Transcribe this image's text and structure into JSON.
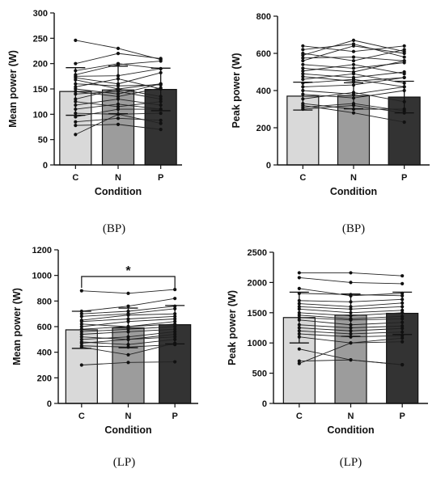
{
  "chart_data": [
    {
      "type": "bar",
      "panel_label": "(BP)",
      "categories": [
        "C",
        "N",
        "P"
      ],
      "xlabel": "Condition",
      "ylabel": "Mean power (W)",
      "ylim": [
        0,
        300
      ],
      "yticks": [
        0,
        50,
        100,
        150,
        200,
        250,
        300
      ],
      "bar_colors": [
        "#d9d9d9",
        "#9c9c9c",
        "#333333"
      ],
      "values": [
        145,
        148,
        149
      ],
      "error_sd": [
        47,
        47,
        42
      ],
      "individuals": [
        [
          246,
          230,
          208
        ],
        [
          200,
          220,
          210
        ],
        [
          186,
          200,
          190
        ],
        [
          178,
          198,
          205
        ],
        [
          175,
          176,
          190
        ],
        [
          172,
          160,
          182
        ],
        [
          168,
          150,
          160
        ],
        [
          160,
          156,
          158
        ],
        [
          154,
          170,
          150
        ],
        [
          150,
          140,
          160
        ],
        [
          145,
          135,
          152
        ],
        [
          140,
          145,
          130
        ],
        [
          130,
          150,
          135
        ],
        [
          125,
          115,
          125
        ],
        [
          118,
          130,
          118
        ],
        [
          110,
          120,
          110
        ],
        [
          102,
          100,
          102
        ],
        [
          95,
          110,
          110
        ],
        [
          85,
          92,
          88
        ],
        [
          78,
          80,
          70
        ],
        [
          60,
          100,
          82
        ]
      ],
      "significance": null
    },
    {
      "type": "bar",
      "panel_label": "(BP)",
      "categories": [
        "C",
        "N",
        "P"
      ],
      "xlabel": "Condition",
      "ylabel": "Peak power (W)",
      "ylim": [
        0,
        800
      ],
      "yticks": [
        0,
        200,
        400,
        600,
        800
      ],
      "bar_colors": [
        "#d9d9d9",
        "#9c9c9c",
        "#333333"
      ],
      "values": [
        370,
        372,
        365
      ],
      "error_sd": [
        75,
        70,
        85
      ],
      "individuals": [
        [
          640,
          610,
          640
        ],
        [
          620,
          650,
          580
        ],
        [
          600,
          560,
          620
        ],
        [
          590,
          670,
          610
        ],
        [
          575,
          580,
          560
        ],
        [
          560,
          640,
          600
        ],
        [
          540,
          520,
          550
        ],
        [
          520,
          500,
          560
        ],
        [
          505,
          540,
          490
        ],
        [
          490,
          470,
          500
        ],
        [
          475,
          450,
          470
        ],
        [
          460,
          490,
          440
        ],
        [
          440,
          460,
          420
        ],
        [
          420,
          430,
          470
        ],
        [
          400,
          380,
          420
        ],
        [
          380,
          360,
          400
        ],
        [
          355,
          390,
          340
        ],
        [
          330,
          300,
          300
        ],
        [
          310,
          330,
          290
        ],
        [
          300,
          320,
          280
        ],
        [
          320,
          280,
          230
        ]
      ],
      "significance": null
    },
    {
      "type": "bar",
      "panel_label": "(LP)",
      "categories": [
        "C",
        "N",
        "P"
      ],
      "xlabel": "Condition",
      "ylabel": "Mean power (W)",
      "ylim": [
        0,
        1200
      ],
      "yticks": [
        0,
        200,
        400,
        600,
        800,
        1000,
        1200
      ],
      "bar_colors": [
        "#d9d9d9",
        "#9c9c9c",
        "#333333"
      ],
      "values": [
        575,
        590,
        615
      ],
      "error_sd": [
        145,
        155,
        150
      ],
      "individuals": [
        [
          880,
          860,
          890
        ],
        [
          720,
          760,
          820
        ],
        [
          700,
          720,
          760
        ],
        [
          680,
          700,
          740
        ],
        [
          650,
          690,
          700
        ],
        [
          640,
          660,
          680
        ],
        [
          620,
          600,
          640
        ],
        [
          600,
          640,
          660
        ],
        [
          580,
          600,
          620
        ],
        [
          560,
          580,
          600
        ],
        [
          540,
          560,
          580
        ],
        [
          520,
          500,
          540
        ],
        [
          500,
          520,
          560
        ],
        [
          480,
          460,
          500
        ],
        [
          470,
          500,
          520
        ],
        [
          450,
          440,
          460
        ],
        [
          440,
          380,
          470
        ],
        [
          300,
          320,
          325
        ]
      ],
      "significance": {
        "from": "C",
        "to": "P",
        "label": "*"
      }
    },
    {
      "type": "bar",
      "panel_label": "(LP)",
      "categories": [
        "C",
        "N",
        "P"
      ],
      "xlabel": "Condition",
      "ylabel": "Peak power (W)",
      "ylim": [
        0,
        2500
      ],
      "yticks": [
        0,
        500,
        1000,
        1500,
        2000,
        2500
      ],
      "bar_colors": [
        "#d9d9d9",
        "#9c9c9c",
        "#333333"
      ],
      "values": [
        1420,
        1460,
        1490
      ],
      "error_sd": [
        420,
        350,
        350
      ],
      "individuals": [
        [
          2160,
          2160,
          2110
        ],
        [
          2080,
          2000,
          1980
        ],
        [
          1900,
          1780,
          1820
        ],
        [
          1820,
          1800,
          1780
        ],
        [
          1700,
          1680,
          1720
        ],
        [
          1650,
          1600,
          1660
        ],
        [
          1600,
          1560,
          1600
        ],
        [
          1560,
          1500,
          1540
        ],
        [
          1500,
          1450,
          1500
        ],
        [
          1460,
          1400,
          1440
        ],
        [
          1420,
          1380,
          1400
        ],
        [
          1380,
          1300,
          1340
        ],
        [
          1300,
          1250,
          1280
        ],
        [
          1250,
          1200,
          1240
        ],
        [
          1200,
          1150,
          1180
        ],
        [
          1150,
          1100,
          1120
        ],
        [
          1100,
          1000,
          1080
        ],
        [
          900,
          720,
          640
        ],
        [
          700,
          720,
          640
        ],
        [
          660,
          1000,
          1020
        ]
      ],
      "significance": null
    }
  ]
}
